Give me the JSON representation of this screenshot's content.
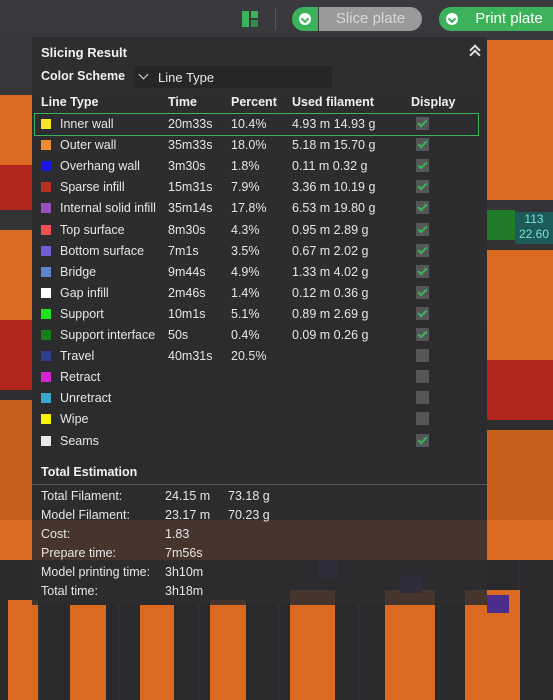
{
  "toolbar": {
    "slice_label": "Slice plate",
    "print_label": "Print plate"
  },
  "side_readout": {
    "line1": "113",
    "line2": "22.60"
  },
  "panel": {
    "title": "Slicing Result",
    "color_scheme_label": "Color Scheme",
    "color_scheme_value": "Line Type",
    "headers": {
      "line_type": "Line Type",
      "time": "Time",
      "percent": "Percent",
      "used_filament": "Used filament",
      "display": "Display"
    },
    "rows": [
      {
        "name": "Inner wall",
        "time": "20m33s",
        "percent": "10.4%",
        "filament": "4.93 m  14.93 g",
        "color": "#f5e72a",
        "display": true,
        "selected": true
      },
      {
        "name": "Outer wall",
        "time": "35m33s",
        "percent": "18.0%",
        "filament": "5.18 m  15.70 g",
        "color": "#f08a34",
        "display": true
      },
      {
        "name": "Overhang wall",
        "time": "3m30s",
        "percent": "1.8%",
        "filament": "0.11 m  0.32 g",
        "color": "#1a16e6",
        "display": true
      },
      {
        "name": "Sparse infill",
        "time": "15m31s",
        "percent": "7.9%",
        "filament": "3.36 m  10.19 g",
        "color": "#b53222",
        "display": true
      },
      {
        "name": "Internal solid infill",
        "time": "35m14s",
        "percent": "17.8%",
        "filament": "6.53 m  19.80 g",
        "color": "#9a4fbc",
        "display": true
      },
      {
        "name": "Top surface",
        "time": "8m30s",
        "percent": "4.3%",
        "filament": "0.95 m  2.89 g",
        "color": "#e9504f",
        "display": true
      },
      {
        "name": "Bottom surface",
        "time": "7m1s",
        "percent": "3.5%",
        "filament": "0.67 m  2.02 g",
        "color": "#6e5fd6",
        "display": true
      },
      {
        "name": "Bridge",
        "time": "9m44s",
        "percent": "4.9%",
        "filament": "1.33 m  4.02 g",
        "color": "#5b86c8",
        "display": true
      },
      {
        "name": "Gap infill",
        "time": "2m46s",
        "percent": "1.4%",
        "filament": "0.12 m  0.36 g",
        "color": "#ffffff",
        "display": true
      },
      {
        "name": "Support",
        "time": "10m1s",
        "percent": "5.1%",
        "filament": "0.89 m  2.69 g",
        "color": "#1ee31e",
        "display": true
      },
      {
        "name": "Support interface",
        "time": "50s",
        "percent": "0.4%",
        "filament": "0.09 m  0.26 g",
        "color": "#15801a",
        "display": true
      },
      {
        "name": "Travel",
        "time": "40m31s",
        "percent": "20.5%",
        "filament": "",
        "color": "#2f3f92",
        "display": false
      },
      {
        "name": "Retract",
        "time": "",
        "percent": "",
        "filament": "",
        "color": "#d425d9",
        "display": false
      },
      {
        "name": "Unretract",
        "time": "",
        "percent": "",
        "filament": "",
        "color": "#39a7cc",
        "display": false
      },
      {
        "name": "Wipe",
        "time": "",
        "percent": "",
        "filament": "",
        "color": "#f5f500",
        "display": false
      },
      {
        "name": "Seams",
        "time": "",
        "percent": "",
        "filament": "",
        "color": "#e8e8e8",
        "display": true
      }
    ],
    "total_estimation_label": "Total Estimation",
    "estimation": [
      {
        "label": "Total Filament:",
        "v1": "24.15 m",
        "v2": "73.18 g"
      },
      {
        "label": "Model Filament:",
        "v1": "23.17 m",
        "v2": "70.23 g"
      },
      {
        "label": "Cost:",
        "v1": "1.83",
        "v2": ""
      },
      {
        "label": "Prepare time:",
        "v1": "7m56s",
        "v2": ""
      },
      {
        "label": "Model printing time:",
        "v1": "3h10m",
        "v2": ""
      },
      {
        "label": "Total time:",
        "v1": "3h18m",
        "v2": ""
      }
    ]
  },
  "colors": {
    "accent": "#3cb35a"
  }
}
